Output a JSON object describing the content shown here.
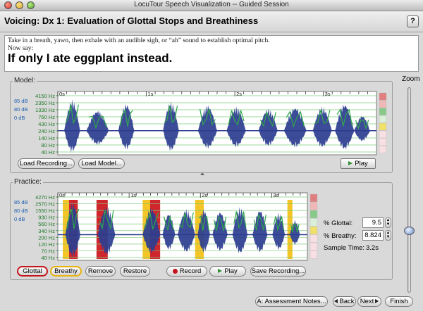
{
  "window": {
    "title": "LocuTour Speech Visualization -- Guided Session"
  },
  "header": {
    "title": "Voicing: Dx 1: Evaluation of Glottal Stops and Breathiness",
    "help_label": "?"
  },
  "prompt": {
    "instruction": "Take in a breath, yawn, then exhale with an audible sigh, or “ah” sound to establish optimal pitch.",
    "now_say": "Now say:",
    "sentence": "If only I ate eggplant instead."
  },
  "zoom": {
    "label": "Zoom",
    "level": 0.33
  },
  "colors": {
    "waveform": "#2b3d8f",
    "pitch": "#2fa84a",
    "glottal": "#cc1a22",
    "breathy": "#f2c21a",
    "gridline": "#7ecb7e"
  },
  "model": {
    "label": "Model:",
    "time_ticks": [
      "0s",
      "1s",
      "2s",
      "3s"
    ],
    "db_labels": [
      "85 dB",
      "80 dB",
      "0 dB"
    ],
    "hz_labels": [
      "4150 Hz",
      "2350 Hz",
      "1330 Hz",
      "760 Hz",
      "430 Hz",
      "240 Hz",
      "140 Hz",
      "80 Hz",
      "40 Hz"
    ],
    "load_recording_label": "Load Recording...",
    "load_model_label": "Load Model...",
    "play_label": "Play"
  },
  "practice": {
    "label": "Practice:",
    "time_ticks": [
      "0s",
      "1s",
      "2s",
      "3s"
    ],
    "db_labels": [
      "85 dB",
      "80 dB",
      "0 dB"
    ],
    "hz_labels": [
      "4270 Hz",
      "2570 Hz",
      "1550 Hz",
      "930 Hz",
      "560 Hz",
      "340 Hz",
      "200 Hz",
      "120 Hz",
      "70 Hz",
      "40 Hz"
    ],
    "glottal_label": "Glottal",
    "breathy_label": "Breathy",
    "remove_label": "Remove",
    "restore_label": "Restore",
    "record_label": "Record",
    "play_label": "Play",
    "save_label": "Save Recording...",
    "pct_glottal_label": "% Glottal:",
    "pct_glottal_value": "9.5",
    "pct_breathy_label": "% Breathy:",
    "pct_breathy_value": "8.824",
    "sample_time_label": "Sample Time:",
    "sample_time_value": "3.2s"
  },
  "footer": {
    "notes_label": "A: Assessment Notes...",
    "back_label": "Back",
    "next_label": "Next",
    "finish_label": "Finish"
  }
}
